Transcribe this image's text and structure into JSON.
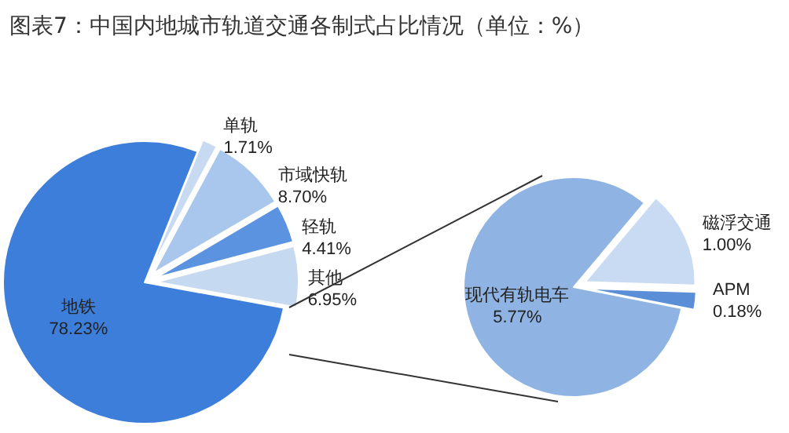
{
  "chart_data": [
    {
      "type": "pie",
      "title": "图表7：中国内地城市轨道交通各制式占比情况（单位：%）",
      "categories": [
        "单轨",
        "市域快轨",
        "轻轨",
        "其他",
        "地铁"
      ],
      "values": [
        1.71,
        8.7,
        4.41,
        6.95,
        78.23
      ],
      "value_labels": [
        "1.71%",
        "8.70%",
        "4.41%",
        "6.95%",
        "78.23%"
      ],
      "colors": [
        "#c8daf2",
        "#a9c6ec",
        "#5b93e0",
        "#c5d9f1",
        "#3d7edb"
      ]
    },
    {
      "type": "pie",
      "categories": [
        "磁浮交通",
        "APM",
        "现代有轨电车"
      ],
      "values": [
        1.0,
        0.18,
        5.77
      ],
      "value_labels": [
        "1.00%",
        "0.18%",
        "5.77%"
      ],
      "colors": [
        "#c9dbf2",
        "#5a8fd8",
        "#8fb4e3"
      ]
    }
  ]
}
